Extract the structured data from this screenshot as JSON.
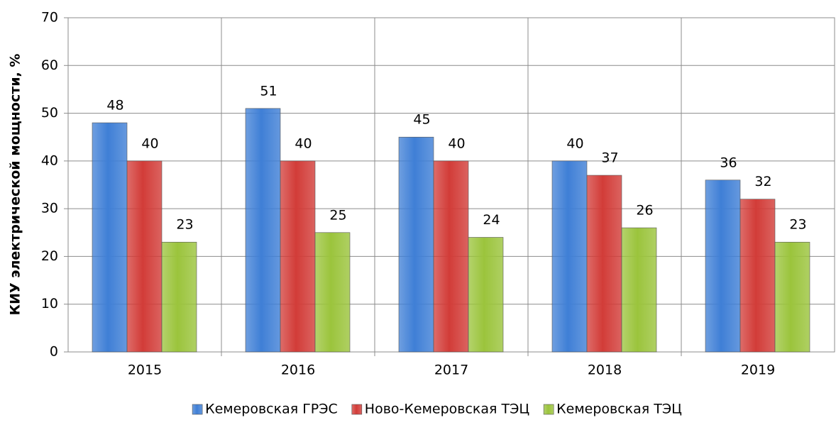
{
  "chart_data": {
    "type": "bar",
    "y_label": "КИУ электрической мощности, %",
    "categories": [
      "2015",
      "2016",
      "2017",
      "2018",
      "2019"
    ],
    "series": [
      {
        "name": "Кемеровская ГРЭС",
        "color": "#3f7fd6",
        "values": [
          48,
          51,
          45,
          40,
          36
        ]
      },
      {
        "name": "Ново-Кемеровская ТЭЦ",
        "color": "#d23c38",
        "values": [
          40,
          40,
          40,
          37,
          32
        ]
      },
      {
        "name": "Кемеровская ТЭЦ",
        "color": "#9bc43c",
        "values": [
          23,
          25,
          24,
          26,
          23
        ]
      }
    ],
    "ylim": [
      0,
      70
    ],
    "yticks": [
      0,
      10,
      20,
      30,
      40,
      50,
      60,
      70
    ],
    "grid": true,
    "legend": "bottom"
  }
}
